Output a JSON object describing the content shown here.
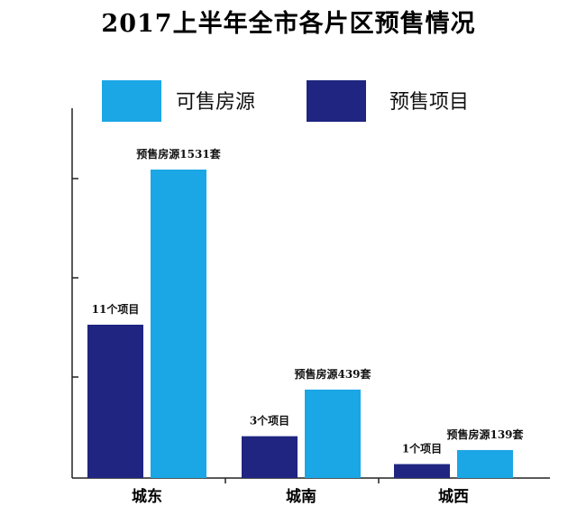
{
  "chart_data": {
    "type": "bar",
    "title": "2017上半年全市各片区预售情况",
    "categories": [
      "城东",
      "城南",
      "城西"
    ],
    "series": [
      {
        "name": "预售项目",
        "color": "#1f2580",
        "values": [
          11,
          3,
          1
        ],
        "labels": [
          "11个项目",
          "3个项目",
          "1个项目"
        ]
      },
      {
        "name": "可售房源",
        "color": "#1ba6e6",
        "values": [
          1531,
          439,
          139
        ],
        "labels": [
          "预售房源1531套",
          "预售房源439套",
          "预售房源139套"
        ]
      }
    ],
    "legend": [
      "可售房源",
      "预售项目"
    ],
    "legend_position": "top",
    "grid": false,
    "yticks": false
  }
}
